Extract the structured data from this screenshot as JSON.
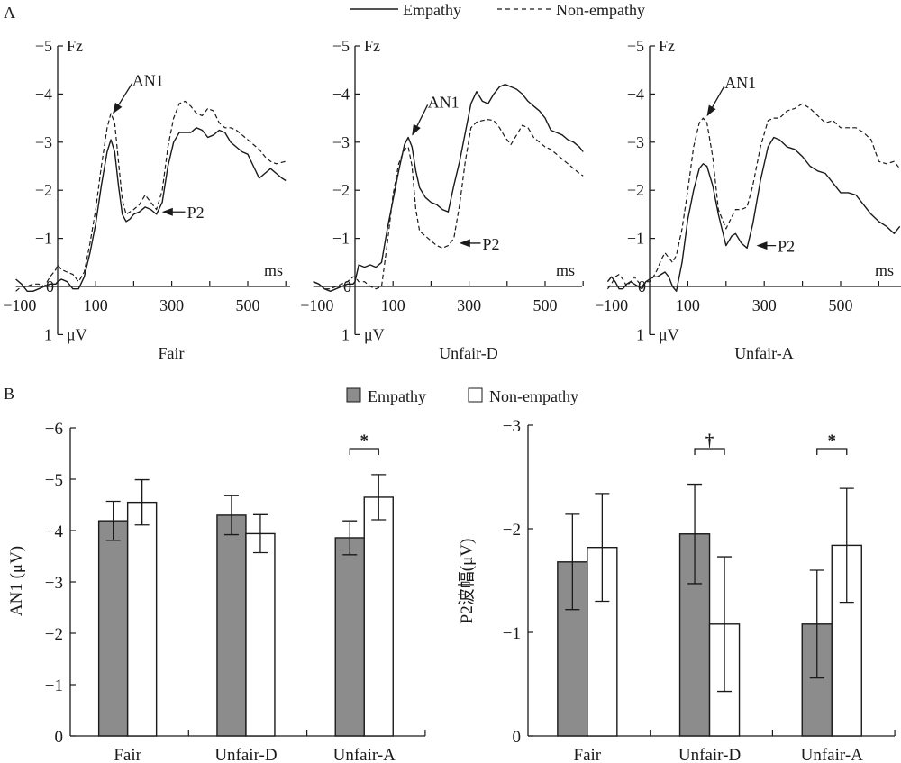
{
  "figure": {
    "panel_a_label": "A",
    "panel_b_label": "B"
  },
  "colors": {
    "empathy_bar": "#8c8c8c",
    "non_empathy_bar": "#ffffff",
    "ink": "#1a1a1a"
  },
  "chart_data": [
    {
      "type": "line",
      "id": "erp-fair",
      "title": "Fair",
      "electrode": "Fz",
      "xlabel": "ms",
      "ylabel": "μV",
      "x_ticks": [
        "-100",
        "100",
        "300",
        "500"
      ],
      "y_ticks": [
        "-5",
        "-4",
        "-3",
        "-2",
        "-1",
        "0",
        "1"
      ],
      "xlim": [
        -100,
        600
      ],
      "ylim": [
        1,
        -5
      ],
      "y_inverted": true,
      "annotations": [
        {
          "text": "AN1",
          "target_ms": 140,
          "target_uv": -3.55,
          "label_ms": 215,
          "label_uv": -4.3
        },
        {
          "text": "P2",
          "target_ms": 265,
          "target_uv": -1.55,
          "label_ms": 345,
          "label_uv": -1.55
        }
      ],
      "series": [
        {
          "name": "Empathy",
          "style": "solid",
          "x": [
            -110,
            -95,
            -80,
            -65,
            -50,
            -35,
            -20,
            -5,
            0,
            10,
            25,
            40,
            55,
            70,
            85,
            100,
            115,
            130,
            140,
            150,
            160,
            170,
            180,
            190,
            200,
            215,
            230,
            245,
            260,
            275,
            290,
            305,
            320,
            335,
            350,
            365,
            380,
            395,
            410,
            425,
            440,
            455,
            470,
            485,
            500,
            515,
            530,
            545,
            560,
            575,
            590,
            600
          ],
          "y": [
            -0.15,
            -0.05,
            0.1,
            0.1,
            0.05,
            0.0,
            -0.05,
            -0.05,
            -0.1,
            -0.15,
            -0.1,
            0.05,
            0.05,
            -0.2,
            -0.7,
            -1.3,
            -2.1,
            -2.8,
            -3.05,
            -2.8,
            -2.1,
            -1.5,
            -1.35,
            -1.4,
            -1.5,
            -1.55,
            -1.65,
            -1.6,
            -1.5,
            -1.75,
            -2.5,
            -3.0,
            -3.2,
            -3.2,
            -3.2,
            -3.3,
            -3.25,
            -3.1,
            -3.15,
            -3.25,
            -3.2,
            -3.0,
            -2.9,
            -2.8,
            -2.75,
            -2.5,
            -2.25,
            -2.35,
            -2.45,
            -2.35,
            -2.25,
            -2.2
          ]
        },
        {
          "name": "Non-empathy",
          "style": "dashed",
          "x": [
            -110,
            -95,
            -80,
            -65,
            -50,
            -35,
            -20,
            -5,
            0,
            10,
            25,
            40,
            55,
            70,
            85,
            100,
            115,
            130,
            140,
            150,
            160,
            170,
            180,
            190,
            200,
            215,
            230,
            245,
            260,
            275,
            290,
            305,
            320,
            335,
            350,
            365,
            380,
            395,
            410,
            425,
            440,
            455,
            470,
            485,
            500,
            515,
            530,
            545,
            560,
            575,
            590,
            600
          ],
          "y": [
            0.1,
            0.0,
            0.0,
            -0.05,
            -0.05,
            0.0,
            -0.2,
            -0.35,
            -0.45,
            -0.35,
            -0.3,
            -0.25,
            -0.1,
            -0.3,
            -0.9,
            -1.6,
            -2.5,
            -3.3,
            -3.6,
            -3.4,
            -2.6,
            -1.8,
            -1.5,
            -1.55,
            -1.6,
            -1.7,
            -1.9,
            -1.75,
            -1.6,
            -2.0,
            -2.9,
            -3.5,
            -3.8,
            -3.85,
            -3.75,
            -3.6,
            -3.55,
            -3.7,
            -3.65,
            -3.4,
            -3.3,
            -3.3,
            -3.25,
            -3.15,
            -3.05,
            -2.95,
            -2.85,
            -2.7,
            -2.6,
            -2.55,
            -2.58,
            -2.6
          ]
        }
      ]
    },
    {
      "type": "line",
      "id": "erp-unfair-d",
      "title": "Unfair-D",
      "electrode": "Fz",
      "xlabel": "ms",
      "ylabel": "μV",
      "x_ticks": [
        "-100",
        "100",
        "300",
        "500"
      ],
      "y_ticks": [
        "-5",
        "-4",
        "-3",
        "-2",
        "-1",
        "0",
        "1"
      ],
      "xlim": [
        -100,
        600
      ],
      "ylim": [
        1,
        -5
      ],
      "y_inverted": true,
      "annotations": [
        {
          "text": "AN1",
          "target_ms": 145,
          "target_uv": -3.1,
          "label_ms": 210,
          "label_uv": -3.85
        },
        {
          "text": "P2",
          "target_ms": 265,
          "target_uv": -0.9,
          "label_ms": 340,
          "label_uv": -0.9
        }
      ],
      "series": [
        {
          "name": "Empathy",
          "style": "solid",
          "x": [
            -110,
            -95,
            -80,
            -65,
            -50,
            -35,
            -20,
            -5,
            0,
            10,
            25,
            40,
            55,
            70,
            85,
            100,
            115,
            130,
            140,
            150,
            160,
            170,
            185,
            200,
            215,
            230,
            245,
            260,
            275,
            290,
            305,
            320,
            335,
            350,
            365,
            380,
            395,
            410,
            425,
            440,
            455,
            470,
            485,
            500,
            515,
            530,
            545,
            560,
            575,
            590,
            600
          ],
          "y": [
            -0.1,
            -0.05,
            0.05,
            0.1,
            0.05,
            0.0,
            -0.05,
            -0.05,
            -0.1,
            -0.45,
            -0.4,
            -0.45,
            -0.4,
            -0.5,
            -1.2,
            -1.8,
            -2.4,
            -2.95,
            -3.1,
            -2.9,
            -2.4,
            -2.05,
            -1.85,
            -1.75,
            -1.7,
            -1.6,
            -1.55,
            -2.1,
            -2.6,
            -3.2,
            -3.8,
            -4.05,
            -3.85,
            -3.8,
            -4.0,
            -4.15,
            -4.2,
            -4.15,
            -4.1,
            -4.0,
            -3.85,
            -3.75,
            -3.65,
            -3.5,
            -3.25,
            -3.2,
            -3.15,
            -3.05,
            -3.0,
            -2.9,
            -2.8
          ]
        },
        {
          "name": "Non-empathy",
          "style": "dashed",
          "x": [
            -110,
            -95,
            -80,
            -65,
            -50,
            -35,
            -20,
            -5,
            0,
            10,
            25,
            40,
            55,
            70,
            85,
            100,
            115,
            130,
            140,
            150,
            160,
            170,
            185,
            200,
            215,
            230,
            245,
            260,
            275,
            290,
            305,
            320,
            335,
            350,
            365,
            380,
            395,
            410,
            425,
            440,
            455,
            470,
            485,
            500,
            515,
            530,
            545,
            560,
            575,
            590,
            600
          ],
          "y": [
            -0.1,
            -0.05,
            0.05,
            0.05,
            0.0,
            -0.05,
            -0.1,
            -0.2,
            -0.2,
            -0.1,
            -0.1,
            0.0,
            0.05,
            0.0,
            -0.9,
            -1.9,
            -2.55,
            -2.85,
            -2.9,
            -2.5,
            -1.6,
            -1.15,
            -1.05,
            -0.95,
            -0.85,
            -0.8,
            -0.85,
            -1.0,
            -1.7,
            -2.6,
            -3.3,
            -3.42,
            -3.45,
            -3.47,
            -3.45,
            -3.3,
            -3.1,
            -2.95,
            -3.15,
            -3.35,
            -3.3,
            -3.1,
            -3.0,
            -2.9,
            -2.85,
            -2.75,
            -2.65,
            -2.55,
            -2.45,
            -2.35,
            -2.3
          ]
        }
      ]
    },
    {
      "type": "line",
      "id": "erp-unfair-a",
      "title": "Unfair-A",
      "electrode": "Fz",
      "xlabel": "ms",
      "ylabel": "μV",
      "x_ticks": [
        "-100",
        "100",
        "300",
        "500"
      ],
      "y_ticks": [
        "-5",
        "-4",
        "-3",
        "-2",
        "-1",
        "0",
        "1"
      ],
      "xlim": [
        -100,
        655
      ],
      "ylim": [
        1,
        -5
      ],
      "y_inverted": true,
      "annotations": [
        {
          "text": "AN1",
          "target_ms": 145,
          "target_uv": -3.5,
          "label_ms": 215,
          "label_uv": -4.25
        },
        {
          "text": "P2",
          "target_ms": 270,
          "target_uv": -0.85,
          "label_ms": 340,
          "label_uv": -0.85
        }
      ],
      "series": [
        {
          "name": "Empathy",
          "style": "solid",
          "x": [
            -110,
            -100,
            -90,
            -80,
            -70,
            -60,
            -50,
            -40,
            -30,
            -20,
            -10,
            0,
            10,
            20,
            30,
            40,
            50,
            60,
            70,
            85,
            100,
            115,
            130,
            140,
            150,
            165,
            180,
            200,
            215,
            225,
            240,
            255,
            270,
            290,
            310,
            325,
            340,
            360,
            380,
            400,
            420,
            440,
            460,
            480,
            500,
            520,
            540,
            560,
            580,
            600,
            620,
            640,
            655
          ],
          "y": [
            -0.1,
            -0.2,
            -0.1,
            0.05,
            0.05,
            -0.05,
            -0.1,
            -0.05,
            0.0,
            0.05,
            -0.1,
            -0.15,
            -0.2,
            -0.2,
            -0.25,
            -0.3,
            -0.2,
            0.0,
            0.1,
            -0.5,
            -1.4,
            -2.0,
            -2.45,
            -2.55,
            -2.5,
            -2.1,
            -1.5,
            -0.85,
            -1.05,
            -1.1,
            -0.9,
            -0.8,
            -1.3,
            -2.2,
            -2.9,
            -3.1,
            -3.05,
            -2.9,
            -2.85,
            -2.7,
            -2.5,
            -2.4,
            -2.35,
            -2.15,
            -1.95,
            -1.95,
            -1.9,
            -1.7,
            -1.5,
            -1.35,
            -1.25,
            -1.1,
            -1.25
          ]
        },
        {
          "name": "Non-empathy",
          "style": "dashed",
          "x": [
            -110,
            -100,
            -90,
            -80,
            -70,
            -60,
            -50,
            -40,
            -30,
            -20,
            -10,
            0,
            10,
            20,
            30,
            40,
            50,
            60,
            70,
            85,
            100,
            115,
            130,
            140,
            150,
            165,
            180,
            200,
            215,
            225,
            240,
            255,
            270,
            290,
            310,
            325,
            340,
            360,
            380,
            400,
            420,
            440,
            460,
            480,
            500,
            520,
            540,
            560,
            580,
            600,
            620,
            640,
            655
          ],
          "y": [
            0.05,
            -0.05,
            -0.2,
            -0.25,
            -0.15,
            0.0,
            -0.1,
            -0.2,
            -0.1,
            0.0,
            -0.1,
            -0.1,
            -0.2,
            -0.35,
            -0.55,
            -0.7,
            -0.6,
            -0.5,
            -0.65,
            -1.2,
            -2.0,
            -2.9,
            -3.4,
            -3.5,
            -3.4,
            -2.7,
            -1.6,
            -1.2,
            -1.45,
            -1.6,
            -1.6,
            -1.65,
            -2.1,
            -2.9,
            -3.45,
            -3.5,
            -3.5,
            -3.65,
            -3.7,
            -3.8,
            -3.7,
            -3.55,
            -3.4,
            -3.45,
            -3.3,
            -3.3,
            -3.3,
            -3.2,
            -3.05,
            -2.6,
            -2.55,
            -2.6,
            -2.45
          ]
        }
      ]
    },
    {
      "type": "bar",
      "id": "bar-an1",
      "title": "",
      "ylabel": "AN1 (μV)",
      "xlabel": "",
      "categories": [
        "Fair",
        "Unfair-D",
        "Unfair-A"
      ],
      "y_ticks": [
        "−6",
        "−5",
        "−4",
        "−3",
        "−2",
        "−1",
        "0"
      ],
      "ylim": [
        0,
        -6
      ],
      "y_inverted": true,
      "series": [
        {
          "name": "Empathy",
          "values": [
            -4.19,
            -4.3,
            -3.86
          ],
          "errors": [
            0.38,
            0.38,
            0.33
          ]
        },
        {
          "name": "Non-empathy",
          "values": [
            -4.55,
            -3.94,
            -4.65
          ],
          "errors": [
            0.44,
            0.37,
            0.44
          ]
        }
      ],
      "significance": [
        {
          "category": "Unfair-A",
          "marker": "*"
        }
      ]
    },
    {
      "type": "bar",
      "id": "bar-p2",
      "title": "",
      "ylabel": "P2波幅(μV)",
      "xlabel": "",
      "categories": [
        "Fair",
        "Unfair-D",
        "Unfair-A"
      ],
      "y_ticks": [
        "−3",
        "−2",
        "−1",
        "0"
      ],
      "ylim": [
        0,
        -3
      ],
      "y_inverted": true,
      "series": [
        {
          "name": "Empathy",
          "values": [
            -1.68,
            -1.95,
            -1.08
          ],
          "errors": [
            0.46,
            0.48,
            0.52
          ]
        },
        {
          "name": "Non-empathy",
          "values": [
            -1.82,
            -1.08,
            -1.84
          ],
          "errors": [
            0.52,
            0.65,
            0.55
          ]
        }
      ],
      "significance": [
        {
          "category": "Unfair-D",
          "marker": "†"
        },
        {
          "category": "Unfair-A",
          "marker": "*"
        }
      ]
    }
  ],
  "legends": {
    "top": [
      {
        "label": "Empathy",
        "style": "solid"
      },
      {
        "label": "Non-empathy",
        "style": "dashed"
      }
    ],
    "bottom": [
      {
        "label": "Empathy",
        "swatch": "gray"
      },
      {
        "label": "Non-empathy",
        "swatch": "white"
      }
    ]
  }
}
